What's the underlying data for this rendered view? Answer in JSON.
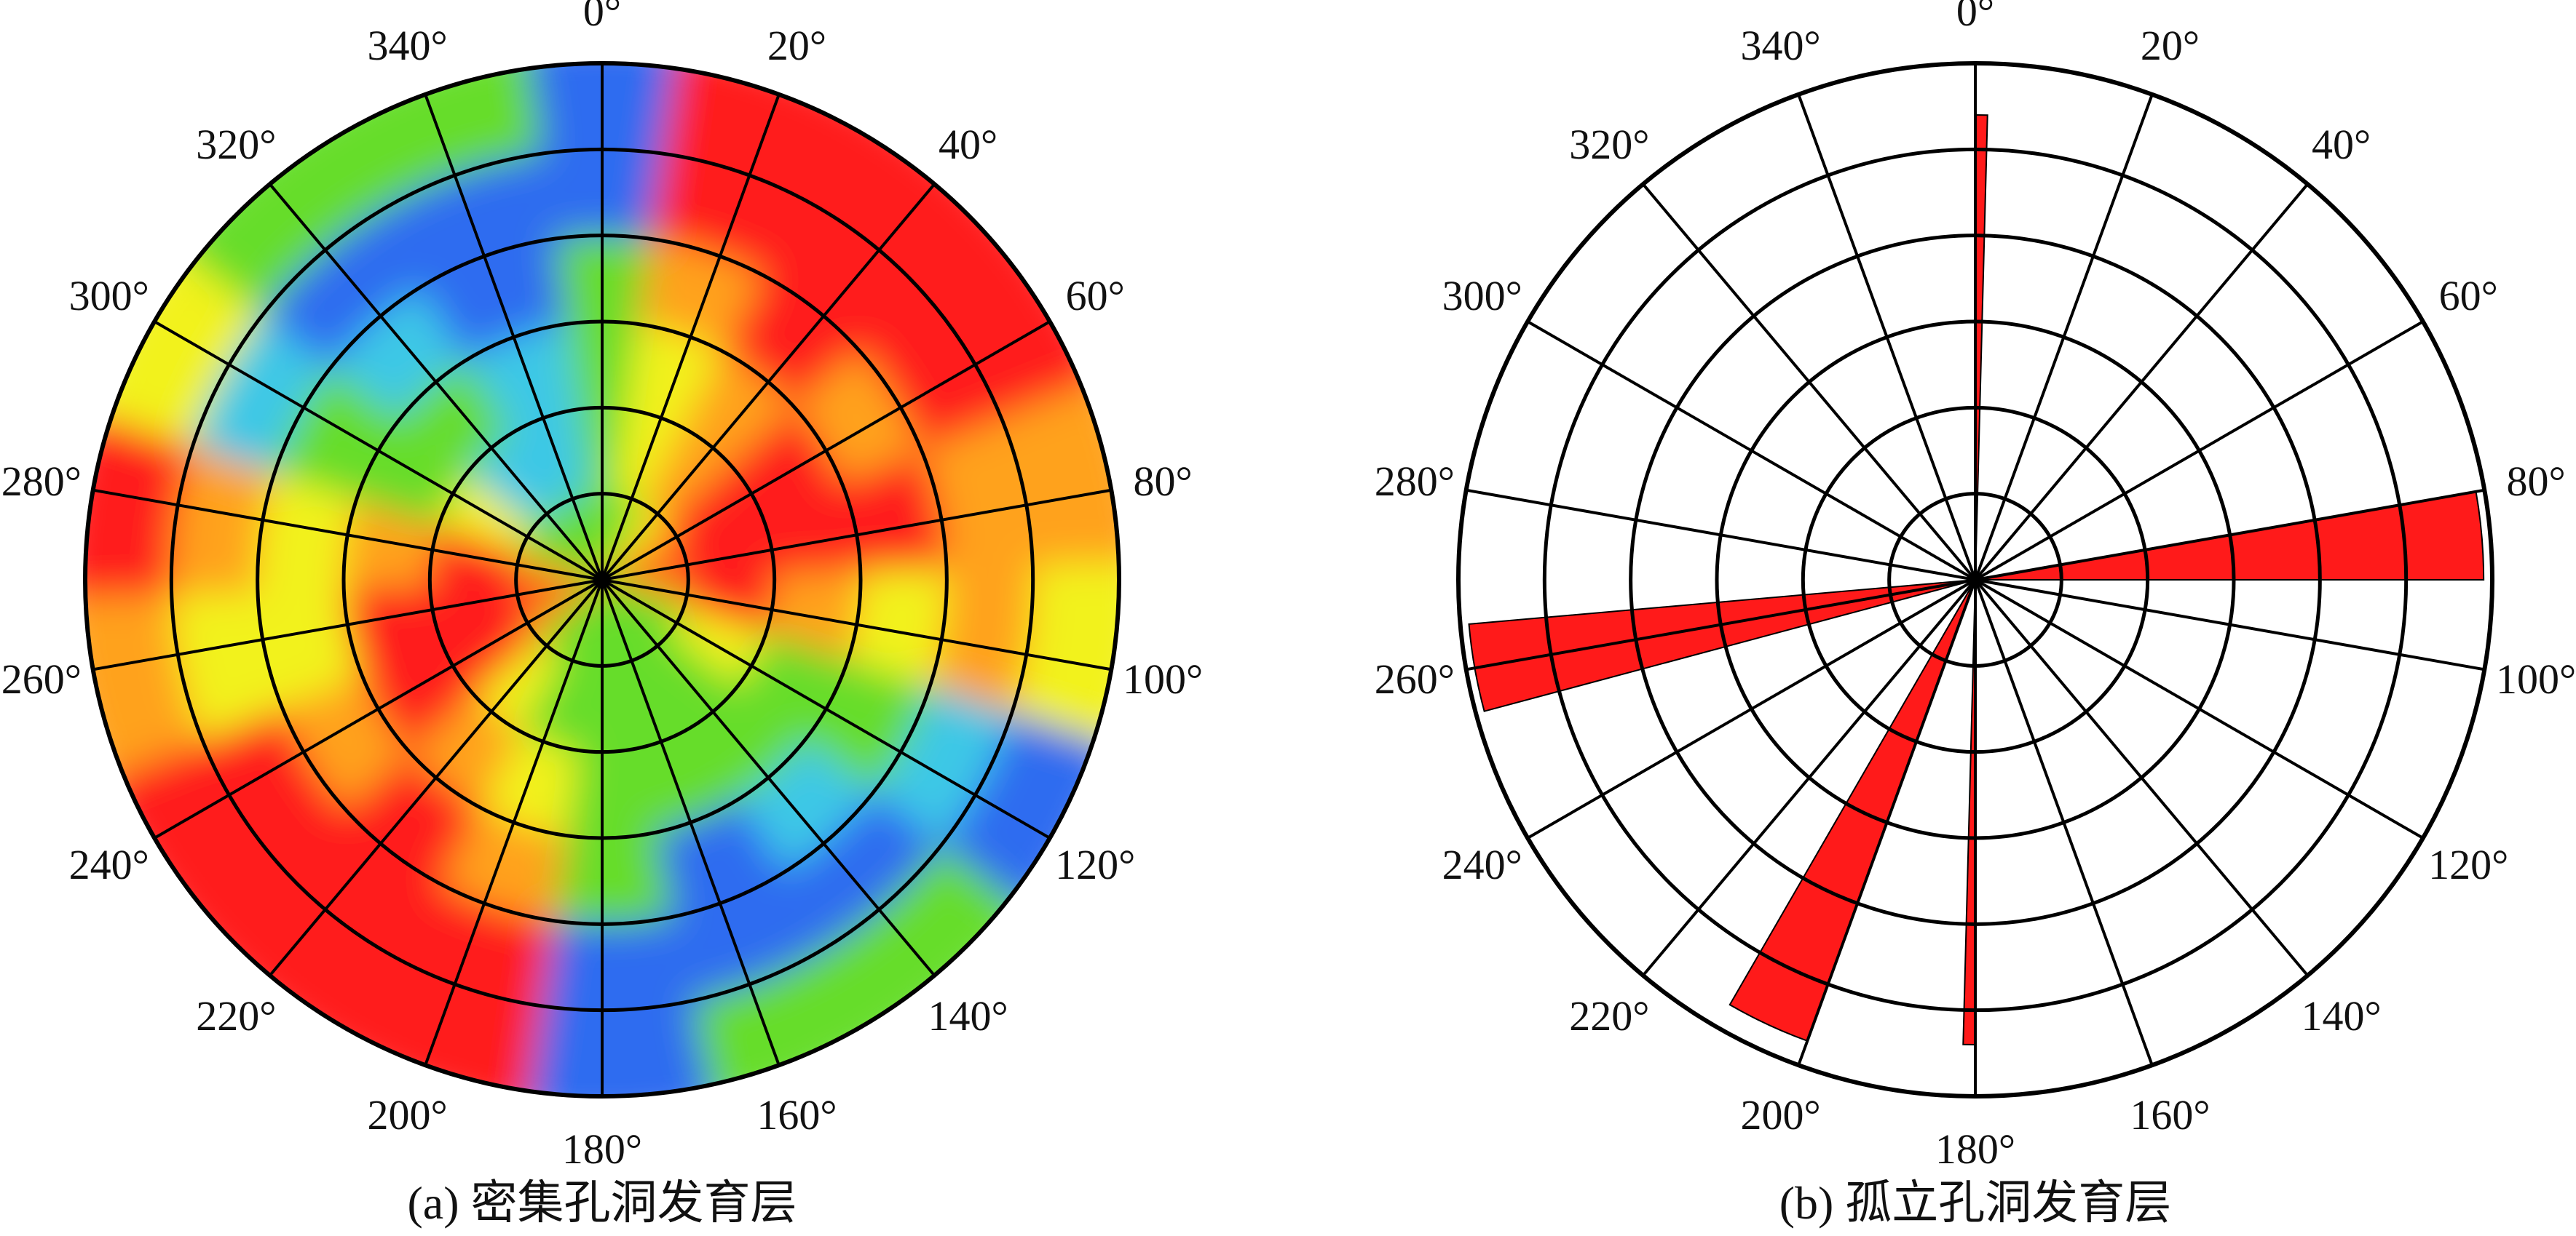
{
  "chart_data": [
    {
      "type": "heatmap",
      "projection": "polar",
      "caption": "(a) 密集孔洞发育层",
      "angle_unit": "degree",
      "angle_ticks": [
        "0°",
        "20°",
        "40°",
        "60°",
        "80°",
        "100°",
        "120°",
        "140°",
        "160°",
        "180°",
        "200°",
        "220°",
        "240°",
        "260°",
        "280°",
        "300°",
        "320°",
        "340°"
      ],
      "rings": 6,
      "spokes": 18,
      "grid": true,
      "colorscale": [
        "#2f6cf0",
        "#3cc8e6",
        "#66dd2a",
        "#f2f21e",
        "#ffa21a",
        "#ff1a1a"
      ],
      "sectors": [
        {
          "angle": 0,
          "levels": [
            2,
            2,
            2,
            2,
            0,
            0
          ]
        },
        {
          "angle": 20,
          "levels": [
            2,
            3,
            3,
            4,
            5,
            5
          ]
        },
        {
          "angle": 40,
          "levels": [
            3,
            4,
            4,
            5,
            5,
            5
          ]
        },
        {
          "angle": 60,
          "levels": [
            4,
            5,
            5,
            4,
            5,
            5
          ]
        },
        {
          "angle": 80,
          "levels": [
            5,
            5,
            5,
            5,
            4,
            4
          ]
        },
        {
          "angle": 100,
          "levels": [
            4,
            5,
            4,
            3,
            4,
            3
          ]
        },
        {
          "angle": 120,
          "levels": [
            2,
            3,
            2,
            2,
            1,
            0
          ]
        },
        {
          "angle": 140,
          "levels": [
            2,
            2,
            2,
            1,
            0,
            2
          ]
        },
        {
          "angle": 160,
          "levels": [
            2,
            2,
            2,
            0,
            0,
            2
          ]
        },
        {
          "angle": 180,
          "levels": [
            2,
            2,
            2,
            2,
            0,
            0
          ]
        },
        {
          "angle": 200,
          "levels": [
            2,
            2,
            3,
            4,
            5,
            5
          ]
        },
        {
          "angle": 220,
          "levels": [
            2,
            3,
            4,
            5,
            5,
            5
          ]
        },
        {
          "angle": 240,
          "levels": [
            4,
            5,
            5,
            4,
            5,
            5
          ]
        },
        {
          "angle": 260,
          "levels": [
            5,
            5,
            5,
            3,
            3,
            4
          ]
        },
        {
          "angle": 280,
          "levels": [
            4,
            5,
            4,
            3,
            4,
            5
          ]
        },
        {
          "angle": 300,
          "levels": [
            2,
            3,
            2,
            2,
            1,
            3
          ]
        },
        {
          "angle": 320,
          "levels": [
            2,
            1,
            2,
            1,
            0,
            2
          ]
        },
        {
          "angle": 340,
          "levels": [
            2,
            1,
            1,
            0,
            0,
            2
          ]
        }
      ]
    },
    {
      "type": "rose",
      "projection": "polar",
      "caption": "(b) 孤立孔洞发育层",
      "angle_unit": "degree",
      "angle_ticks": [
        "0°",
        "20°",
        "40°",
        "60°",
        "80°",
        "100°",
        "120°",
        "140°",
        "160°",
        "180°",
        "200°",
        "220°",
        "240°",
        "260°",
        "280°",
        "300°",
        "320°",
        "340°"
      ],
      "rings": 6,
      "spokes": 18,
      "grid": true,
      "r_max": 6,
      "petals": [
        {
          "start": 80,
          "end": 90,
          "value": 5.9
        },
        {
          "start": 255,
          "end": 265,
          "value": 5.9
        },
        {
          "start": 200,
          "end": 210,
          "value": 5.7
        },
        {
          "start": 0,
          "end": 1.5,
          "value": 5.4
        },
        {
          "start": 180,
          "end": 181.5,
          "value": 5.4
        }
      ],
      "petal_color": "#ff1a1a"
    }
  ]
}
